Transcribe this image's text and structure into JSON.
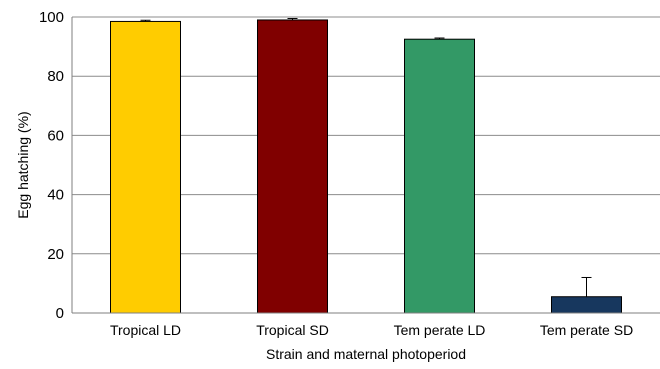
{
  "chart_data": {
    "type": "bar",
    "title": "",
    "xlabel": "Strain and maternal photoperiod",
    "ylabel": "Egg hatching (%)",
    "ylim": [
      0,
      100
    ],
    "yticks": [
      0,
      20,
      40,
      60,
      80,
      100
    ],
    "ytick_labels": [
      "0",
      "20",
      "40",
      "60",
      "80",
      "100"
    ],
    "grid": true,
    "categories": [
      "Tropical LD",
      "Tropical SD",
      "Tem perate LD",
      "Tem perate SD"
    ],
    "values": [
      98.5,
      99,
      92.5,
      5.5
    ],
    "errors": [
      0.4,
      0.5,
      0.4,
      6.5
    ],
    "colors": [
      "#FFCC00",
      "#800000",
      "#339966",
      "#17375E"
    ]
  }
}
